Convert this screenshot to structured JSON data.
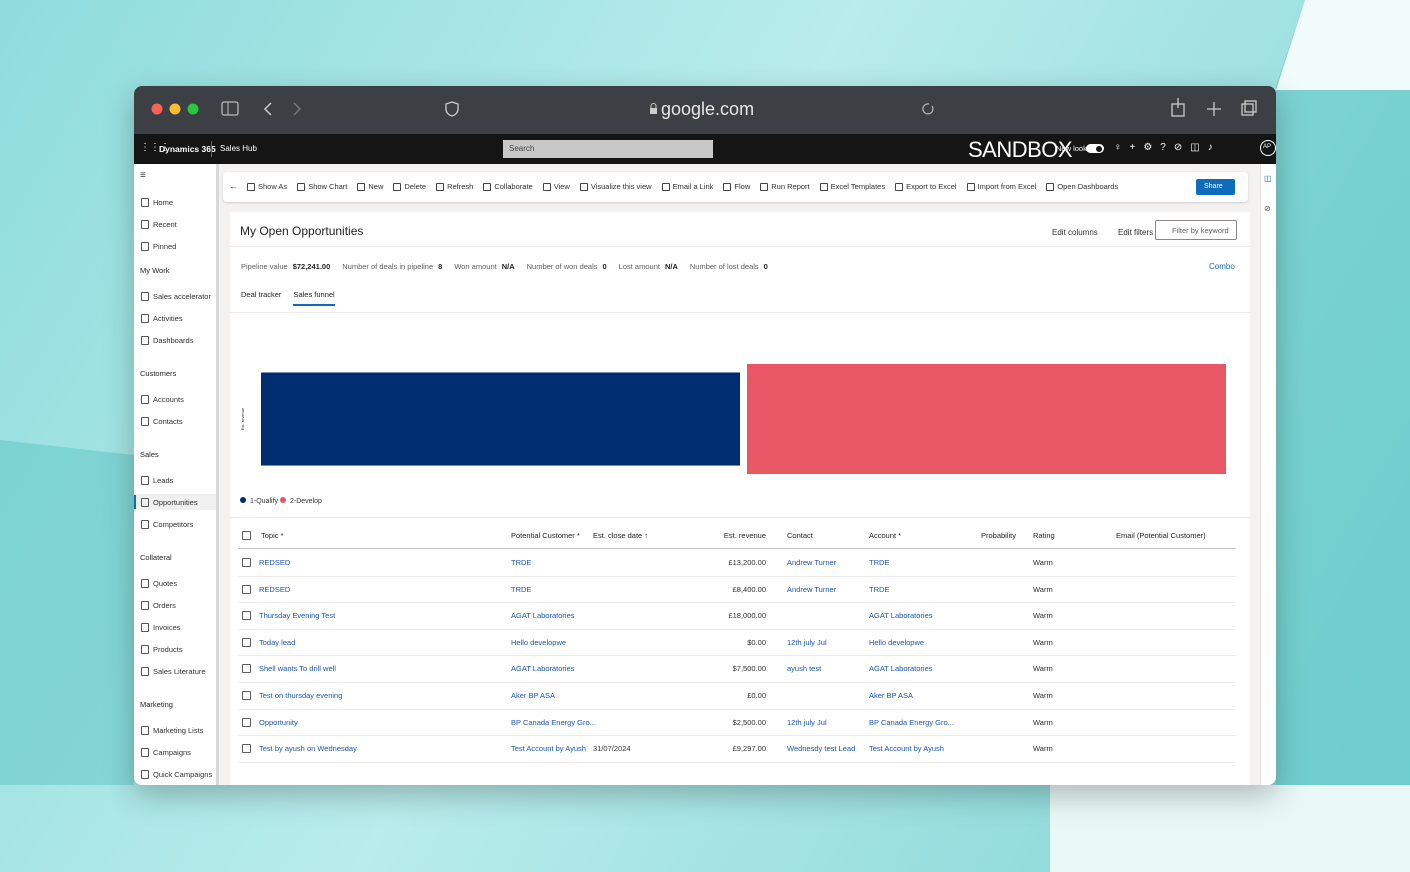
{
  "browser": {
    "url": "google.com"
  },
  "app": {
    "product": "Dynamics 365",
    "area": "Sales Hub",
    "search": "Search",
    "environment": "SANDBOX",
    "new_look": "New look",
    "avatar": "AP"
  },
  "nav": {
    "top": [
      "Home",
      "Recent",
      "Pinned"
    ],
    "sections": [
      {
        "title": "My Work",
        "items": [
          "Sales accelerator",
          "Activities",
          "Dashboards"
        ]
      },
      {
        "title": "Customers",
        "items": [
          "Accounts",
          "Contacts"
        ]
      },
      {
        "title": "Sales",
        "items": [
          "Leads",
          "Opportunities",
          "Competitors"
        ]
      },
      {
        "title": "Collateral",
        "items": [
          "Quotes",
          "Orders",
          "Invoices",
          "Products",
          "Sales Literature"
        ]
      },
      {
        "title": "Marketing",
        "items": [
          "Marketing Lists",
          "Campaigns",
          "Quick Campaigns"
        ]
      }
    ]
  },
  "toolbar": {
    "commands": [
      "Show As",
      "Show Chart",
      "New",
      "Delete",
      "Refresh",
      "Collaborate",
      "View",
      "Visualize this view",
      "Email a Link",
      "Flow",
      "Run Report",
      "Excel Templates",
      "Export to Excel",
      "Import from Excel",
      "Open Dashboards"
    ],
    "share": "Share"
  },
  "view": {
    "title": "My Open Opportunities",
    "edit_columns": "Edit columns",
    "edit_filters": "Edit filters",
    "filter_placeholder": "Filter by keyword",
    "metrics": [
      {
        "label": "Pipeline value",
        "value": "$72,241.00"
      },
      {
        "label": "Number of deals in pipeline",
        "value": "8"
      },
      {
        "label": "Won amount",
        "value": "N/A"
      },
      {
        "label": "Number of won deals",
        "value": "0"
      },
      {
        "label": "Lost amount",
        "value": "N/A"
      },
      {
        "label": "Number of lost deals",
        "value": "0"
      }
    ],
    "combo": "Combo",
    "tabs": [
      "Deal tracker",
      "Sales funnel"
    ]
  },
  "chart_data": {
    "type": "funnel",
    "y_label": "Est. revenue",
    "categories": [
      "1-Qualify",
      "2-Develop"
    ],
    "colors": [
      "#002d72",
      "#e85763"
    ],
    "values": [
      33000,
      39000
    ]
  },
  "table": {
    "headers": [
      "Topic *",
      "Potential Customer *",
      "Est. close date ↑",
      "Est. revenue",
      "Contact",
      "Account *",
      "Probability",
      "Rating",
      "Email (Potential Customer)"
    ],
    "rows": [
      [
        "REDSED",
        "TRDE",
        null,
        "£13,200.00",
        "Andrew Turner",
        "TRDE",
        null,
        "Warm",
        null
      ],
      [
        "REDSED",
        "TRDE",
        null,
        "£8,400.00",
        "Andrew Turner",
        "TRDE",
        null,
        "Warm",
        null
      ],
      [
        "Thursday Evening Test",
        "AGAT Laboratories",
        null,
        "£18,000.00",
        null,
        "AGAT Laboratories",
        null,
        "Warm",
        null
      ],
      [
        "Today lead",
        "Hello developwe",
        null,
        "$0.00",
        "12th july Jul",
        "Hello developwe",
        null,
        "Warm",
        null
      ],
      [
        "Shell wants To drill well",
        "AGAT Laboratories",
        null,
        "$7,500.00",
        "ayush test",
        "AGAT Laboratories",
        null,
        "Warm",
        null
      ],
      [
        "Test on thursday evening",
        "Aker BP ASA",
        null,
        "£0.00",
        null,
        "Aker BP ASA",
        null,
        "Warm",
        null
      ],
      [
        "Opportunity",
        "BP Canada Energy Gro...",
        null,
        "$2,500.00",
        "12th july Jul",
        "BP Canada Energy Gro...",
        null,
        "Warm",
        null
      ],
      [
        "Test by ayush on Wednesday",
        "Test Account by Ayush",
        "31/07/2024",
        "£9,297.00",
        "Wednesdy test Lead",
        "Test Account by Ayush",
        null,
        "Warm",
        null
      ]
    ]
  }
}
